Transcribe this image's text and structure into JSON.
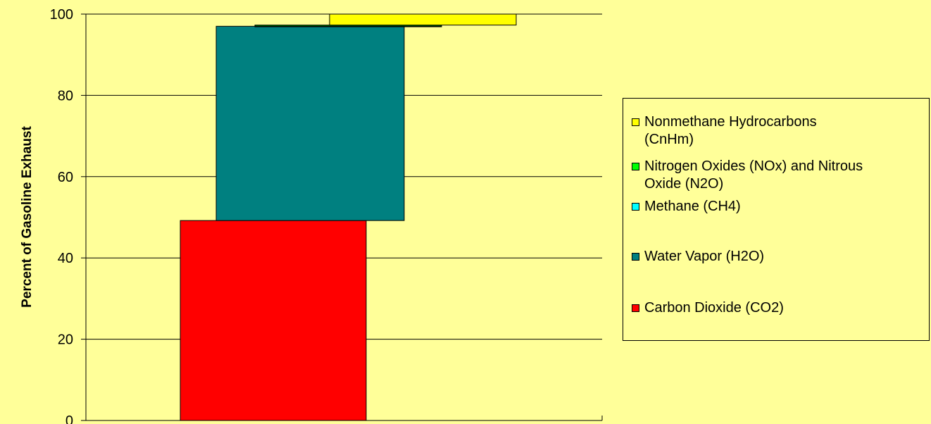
{
  "chart_data": {
    "type": "bar",
    "ylabel": "Percent of Gasoline Exhaust",
    "ylim": [
      0,
      100
    ],
    "yticks": [
      0,
      20,
      40,
      60,
      80,
      100
    ],
    "grid": true,
    "legend_position": "right",
    "series": [
      {
        "name": "Carbon Dioxide (CO2)",
        "start": 0,
        "end": 49.2,
        "color": "#FF0000"
      },
      {
        "name": "Water Vapor (H2O)",
        "start": 49.2,
        "end": 97.0,
        "color": "#008080"
      },
      {
        "name": "Methane (CH4)",
        "start": 97.0,
        "end": 97.05,
        "color": "#00FFFF"
      },
      {
        "name": "Nitrogen Oxides (NOx) and Nitrous Oxide (N2O)",
        "start": 97.05,
        "end": 97.3,
        "color": "#00FF00"
      },
      {
        "name": "Nonmethane Hydrocarbons (CnHm)",
        "start": 97.3,
        "end": 100,
        "color": "#FFFF00"
      }
    ]
  },
  "legend": {
    "items": [
      {
        "label": "Nonmethane Hydrocarbons\n(CnHm)",
        "color": "#FFFF00"
      },
      {
        "label": "Nitrogen Oxides (NOx) and Nitrous\nOxide (N2O)",
        "color": "#00FF00"
      },
      {
        "label": "Methane (CH4)",
        "color": "#00FFFF"
      },
      {
        "label": "Water Vapor (H2O)",
        "color": "#008080"
      },
      {
        "label": "Carbon Dioxide (CO2)",
        "color": "#FF0000"
      }
    ]
  }
}
